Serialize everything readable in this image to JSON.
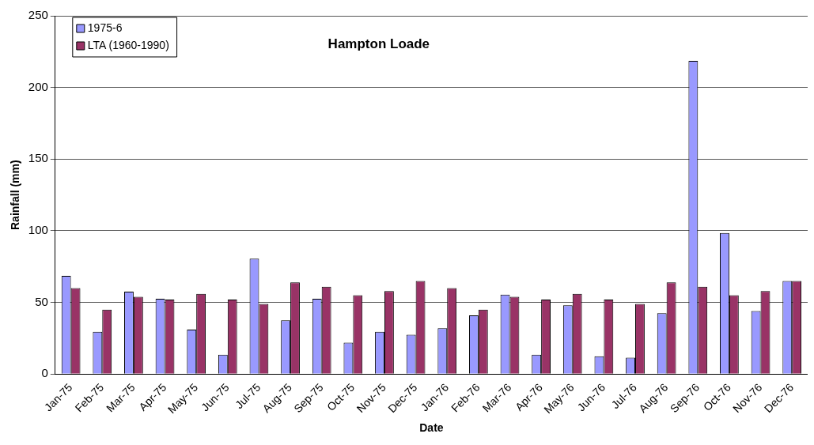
{
  "chart_data": {
    "type": "bar",
    "title": "Hampton Loade",
    "xlabel": "Date",
    "ylabel": "Rainfall (mm)",
    "categories": [
      "Jan-75",
      "Feb-75",
      "Mar-75",
      "Apr-75",
      "May-75",
      "Jun-75",
      "Jul-75",
      "Aug-75",
      "Sep-75",
      "Oct-75",
      "Nov-75",
      "Dec-75",
      "Jan-76",
      "Feb-76",
      "Mar-76",
      "Apr-76",
      "May-76",
      "Jun-76",
      "Jul-76",
      "Aug-76",
      "Sep-76",
      "Oct-76",
      "Nov-76",
      "Dec-76"
    ],
    "series": [
      {
        "name": "1975-6",
        "color": "#9999ff",
        "values": [
          68.5,
          29.5,
          57.5,
          52.5,
          31,
          13.5,
          80.5,
          37.5,
          52.5,
          22,
          29.5,
          27.5,
          32,
          41,
          55.5,
          13.5,
          48,
          12.5,
          11.5,
          42.5,
          218.5,
          98.5,
          44,
          65
        ]
      },
      {
        "name": "LTA (1960-1990)",
        "color": "#993366",
        "values": [
          60,
          45,
          54,
          52,
          56,
          52,
          49,
          64,
          61,
          55,
          58,
          65,
          60,
          45,
          54,
          52,
          56,
          52,
          49,
          64,
          61,
          55,
          58,
          65
        ]
      }
    ],
    "ylim": [
      0,
      250
    ],
    "yticks": [
      0,
      50,
      100,
      150,
      200,
      250
    ],
    "grid": "y",
    "legend": "top left"
  }
}
